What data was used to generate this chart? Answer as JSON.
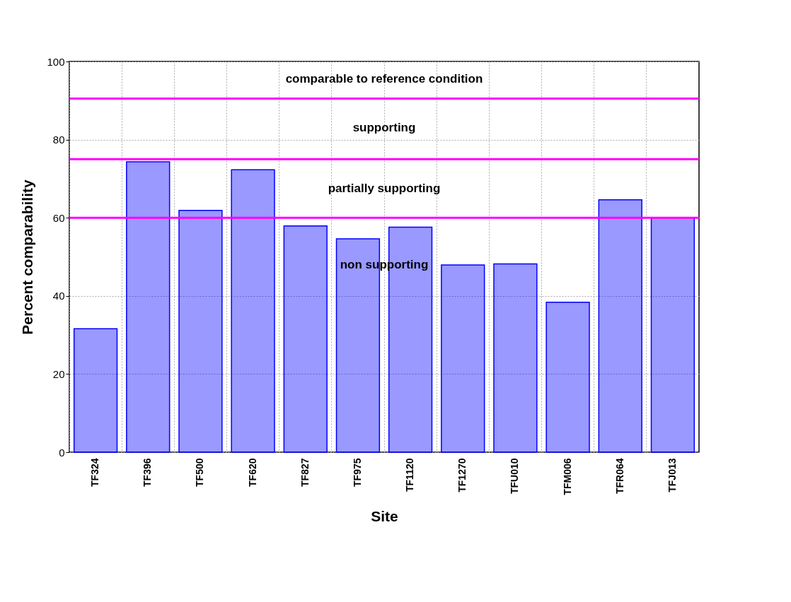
{
  "chart_data": {
    "type": "bar",
    "xlabel": "Site",
    "ylabel": "Percent comparability",
    "categories": [
      "TF324",
      "TF396",
      "TF500",
      "TF620",
      "TF827",
      "TF975",
      "TF1120",
      "TF1270",
      "TFU010",
      "TFM006",
      "TFR064",
      "TFJ013"
    ],
    "values": [
      31.6,
      74.3,
      61.9,
      72.3,
      57.9,
      54.6,
      57.6,
      47.9,
      48.2,
      38.4,
      64.6,
      60.0
    ],
    "color": "#0000ff",
    "ylim": [
      0,
      100
    ],
    "yticks": [
      0,
      20,
      40,
      60,
      80,
      100
    ],
    "grid": true,
    "ref_lines": [
      {
        "axis": "y",
        "value": 90.5,
        "color": "#ff00ff"
      },
      {
        "axis": "y",
        "value": 75,
        "color": "#ff00ff"
      },
      {
        "axis": "y",
        "value": 60,
        "color": "#ff00ff"
      }
    ],
    "annotations": [
      "comparable to reference condition",
      "supporting",
      "partially supporting",
      "non supporting"
    ]
  }
}
